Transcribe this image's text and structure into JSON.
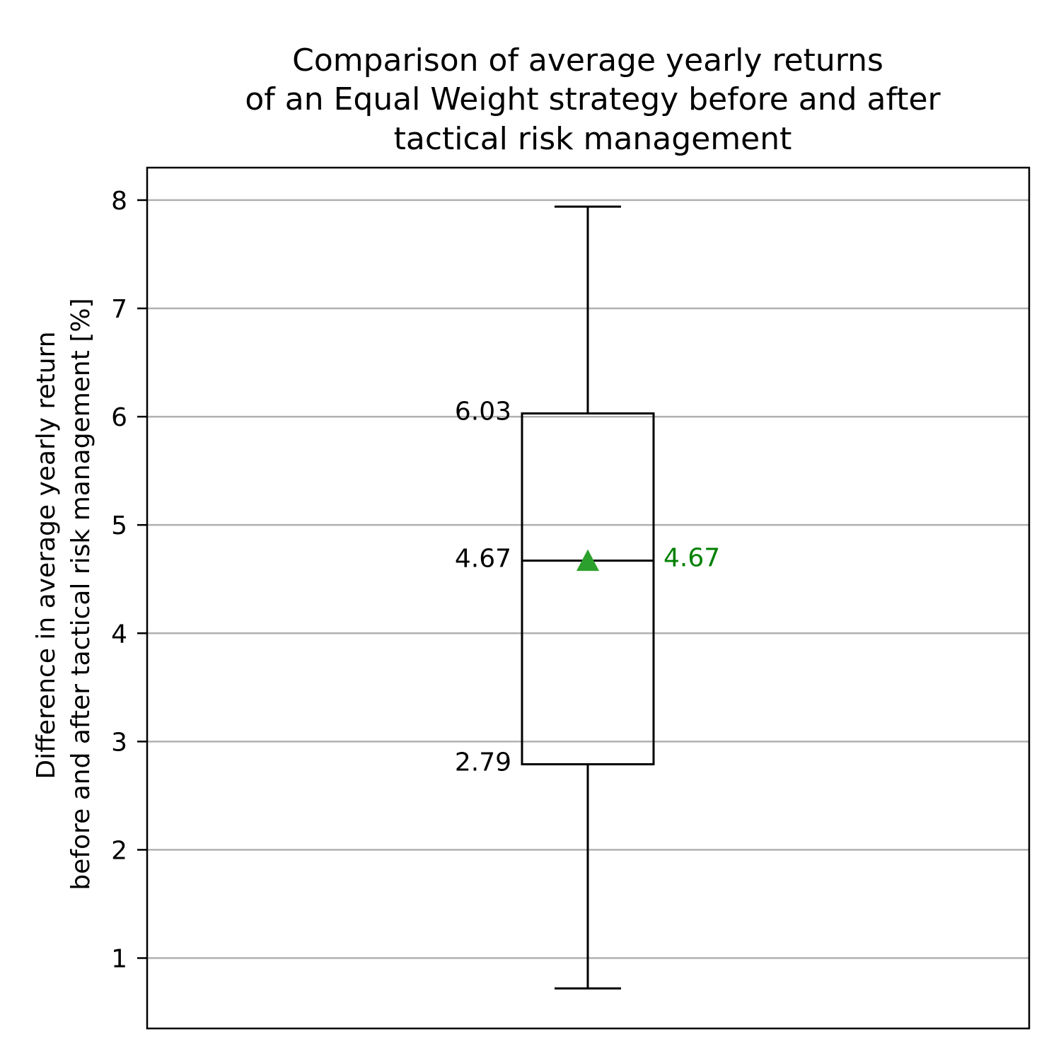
{
  "chart_data": {
    "type": "box",
    "title_lines": [
      "Comparison of average yearly returns",
      "of an Equal Weight strategy before and after",
      "tactical risk management"
    ],
    "ylabel_lines": [
      "Difference in average yearly return",
      "before and after tactical risk management [%]"
    ],
    "ylim": [
      0.35,
      8.3
    ],
    "yticks": [
      1,
      2,
      3,
      4,
      5,
      6,
      7,
      8
    ],
    "ytick_labels": [
      "1",
      "2",
      "3",
      "4",
      "5",
      "6",
      "7",
      "8"
    ],
    "grid": "horizontal",
    "box": {
      "whisker_low": 0.72,
      "q1": 2.79,
      "median": 4.67,
      "q3": 6.03,
      "whisker_high": 7.94,
      "mean": 4.67
    },
    "labels": {
      "q3": "6.03",
      "median": "4.67",
      "q1": "2.79",
      "mean": "4.67"
    },
    "colors": {
      "mean_marker": "#2ca02c",
      "mean_label": "#008000",
      "grid": "#b0b0b0",
      "box": "#000000"
    }
  }
}
